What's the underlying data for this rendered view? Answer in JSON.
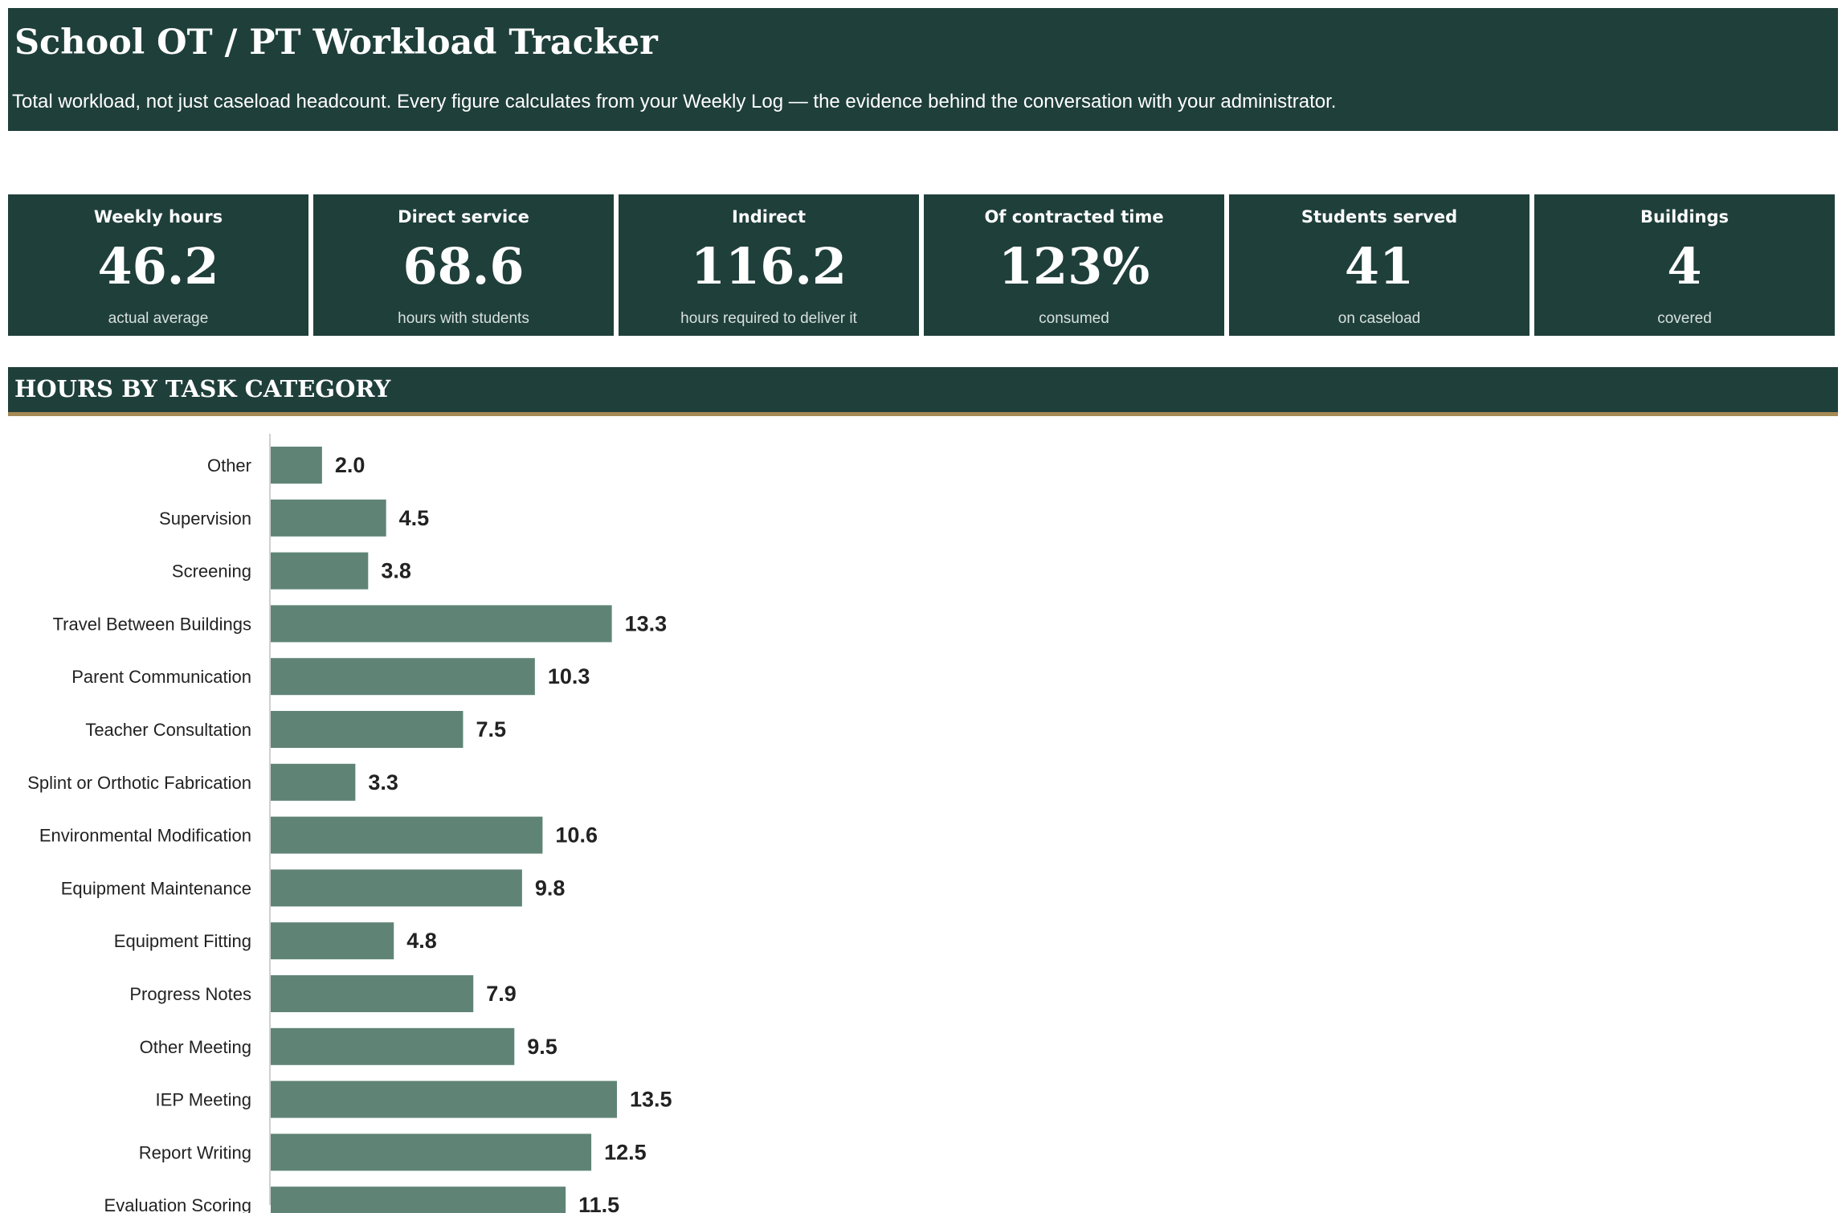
{
  "header": {
    "title": "School OT / PT Workload Tracker",
    "subtitle": "Total workload, not just caseload headcount. Every figure calculates from your Weekly Log — the evidence behind the conversation with your administrator."
  },
  "kpis": [
    {
      "label": "Weekly hours",
      "value": "46.2",
      "caption": "actual average"
    },
    {
      "label": "Direct service",
      "value": "68.6",
      "caption": "hours with students"
    },
    {
      "label": "Indirect",
      "value": "116.2",
      "caption": "hours required to deliver it"
    },
    {
      "label": "Of contracted time",
      "value": "123%",
      "caption": "consumed"
    },
    {
      "label": "Students served",
      "value": "41",
      "caption": "on caseload"
    },
    {
      "label": "Buildings",
      "value": "4",
      "caption": "covered"
    }
  ],
  "section": {
    "title": "HOURS BY TASK CATEGORY"
  },
  "colors": {
    "header_bg": "#1f3f3a",
    "accent_rule": "#a68a54",
    "bar": "#5f8476"
  },
  "chart_data": {
    "type": "bar",
    "orientation": "horizontal",
    "categories": [
      "Other",
      "Supervision",
      "Screening",
      "Travel Between Buildings",
      "Parent Communication",
      "Teacher Consultation",
      "Splint or Orthotic Fabrication",
      "Environmental Modification",
      "Equipment Maintenance",
      "Equipment Fitting",
      "Progress Notes",
      "Other Meeting",
      "IEP Meeting",
      "Report Writing",
      "Evaluation Scoring"
    ],
    "values": [
      2.0,
      4.5,
      3.8,
      13.3,
      10.3,
      7.5,
      3.3,
      10.6,
      9.8,
      4.8,
      7.9,
      9.5,
      13.5,
      12.5,
      11.5
    ],
    "data_labels": [
      "2.0",
      "4.5",
      "3.8",
      "13.3",
      "10.3",
      "7.5",
      "3.3",
      "10.6",
      "9.8",
      "4.8",
      "7.9",
      "9.5",
      "13.5",
      "12.5",
      "11.5"
    ],
    "xlim": [
      0,
      13.5
    ],
    "title": "",
    "xlabel": "",
    "ylabel": "",
    "grid": false,
    "legend": "none"
  }
}
